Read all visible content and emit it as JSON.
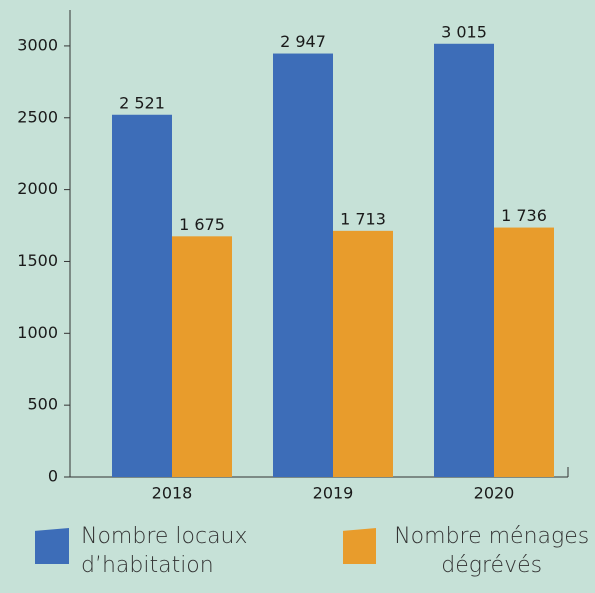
{
  "chart_data": {
    "type": "bar",
    "categories": [
      "2018",
      "2019",
      "2020"
    ],
    "series": [
      {
        "name": "Nombre locaux d’habitation",
        "color": "#3d6db8",
        "values": [
          2521,
          2947,
          3015
        ],
        "value_labels": [
          "2 521",
          "2 947",
          "3 015"
        ]
      },
      {
        "name": "Nombre ménages dégrévés",
        "color": "#e89c2c",
        "values": [
          1675,
          1713,
          1736
        ],
        "value_labels": [
          "1 675",
          "1 713",
          "1 736"
        ]
      }
    ],
    "ylim": [
      0,
      3250
    ],
    "yticks": [
      0,
      500,
      1000,
      1500,
      2000,
      2500,
      3000
    ],
    "grid": false
  }
}
